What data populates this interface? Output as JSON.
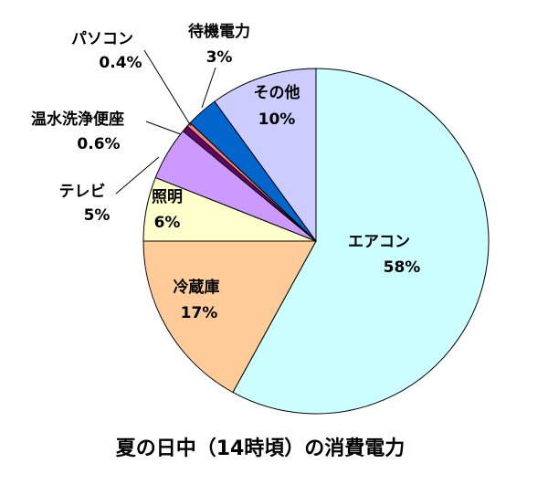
{
  "chart_data": {
    "type": "pie",
    "title": "夏の日中（14時頃）の消費電力",
    "categories": [
      "エアコン",
      "冷蔵庫",
      "照明",
      "テレビ",
      "温水洗浄便座",
      "パソコン",
      "待機電力",
      "その他"
    ],
    "values": [
      58,
      17,
      6,
      5,
      0.6,
      0.4,
      3,
      10
    ],
    "value_labels": [
      "58%",
      "17%",
      "6%",
      "5%",
      "0.6%",
      "0.4%",
      "3%",
      "10%"
    ],
    "colors": [
      "#ccffff",
      "#ffcc99",
      "#ffffcc",
      "#cc99ff",
      "#660066",
      "#ff8080",
      "#0066cc",
      "#ccccff"
    ]
  }
}
